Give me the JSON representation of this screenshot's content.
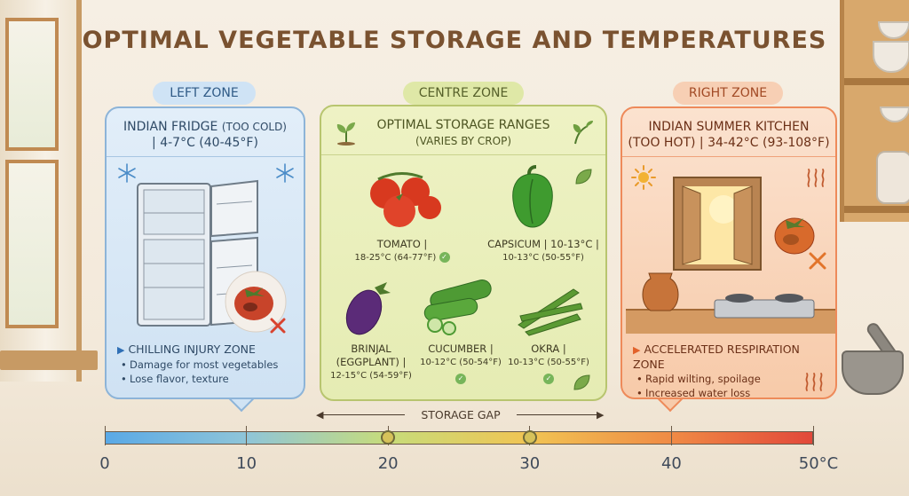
{
  "title": "OPTIMAL VEGETABLE STORAGE AND TEMPERATURES",
  "zones": {
    "left": {
      "tag": "LEFT ZONE",
      "heading_line1": "INDIAN FRIDGE",
      "heading_note": "(TOO COLD)",
      "heading_line2": "| 4-7°C (40-45°F)",
      "point_title": "CHILLING INJURY ZONE",
      "bullets": [
        "Damage for most vegetables",
        "Lose flavor, texture"
      ],
      "color": "#8db4d8"
    },
    "centre": {
      "tag": "CENTRE ZONE",
      "heading_line1": "OPTIMAL STORAGE RANGES",
      "heading_line2": "(VARIES BY CROP)",
      "color": "#b8c56f",
      "vegetables": [
        {
          "name": "TOMATO |",
          "range": "18-25°C (64-77°F)",
          "icon": "tomato-icon"
        },
        {
          "name": "CAPSICUM | 10-13°C |",
          "range": "10-13°C (50-55°F)",
          "icon": "capsicum-icon"
        },
        {
          "name": "BRINJAL",
          "name2": "(EGGPLANT) |",
          "range": "12-15°C (54-59°F)",
          "icon": "brinjal-icon"
        },
        {
          "name": "CUCUMBER |",
          "range": "10-12°C (50-54°F)",
          "icon": "cucumber-icon"
        },
        {
          "name": "OKRA |",
          "range": "10-13°C (50-55°F)",
          "icon": "okra-icon"
        }
      ]
    },
    "right": {
      "tag": "RIGHT ZONE",
      "heading_line1": "INDIAN SUMMER KITCHEN",
      "heading_line2": "(TOO HOT) | 34-42°C (93-108°F)",
      "point_title": "ACCELERATED RESPIRATION ZONE",
      "bullets": [
        "Rapid wilting, spoilage",
        "Increased water loss"
      ],
      "color": "#ee8a5a"
    }
  },
  "storage_gap_label": "STORAGE GAP",
  "scale": {
    "ticks": [
      "0",
      "10",
      "20",
      "30",
      "40",
      "50°C"
    ],
    "markers": [
      20,
      30
    ],
    "min": 0,
    "max": 50,
    "gradient": [
      "#5aa9e6",
      "#8fc5d8",
      "#c7dc7a",
      "#f1c453",
      "#f08b45",
      "#e2483a"
    ]
  }
}
